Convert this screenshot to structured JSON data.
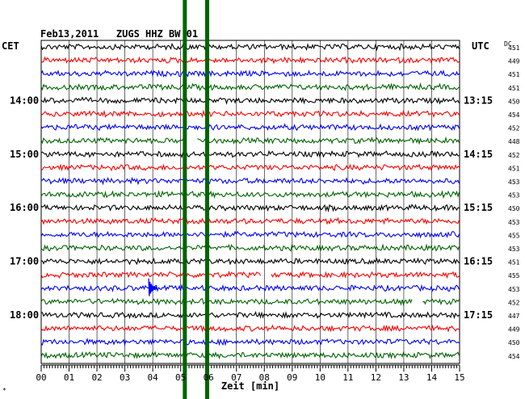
{
  "chart_data": {
    "type": "line",
    "title": "Feb13,2011   ZUGS HHZ BW 01",
    "left_axis_label": "CET",
    "right_axis_label": "UTC",
    "dc_label": "DC",
    "xlabel": "Zeit [min]",
    "x_ticks": [
      "00",
      "01",
      "02",
      "03",
      "04",
      "05",
      "06",
      "07",
      "08",
      "09",
      "10",
      "11",
      "12",
      "13",
      "14",
      "15"
    ],
    "xlim": [
      0,
      15
    ],
    "trace_colors": [
      "#000000",
      "#ff0000",
      "#0000ff",
      "#006400"
    ],
    "left_hour_labels": [
      "14:00",
      "15:00",
      "16:00",
      "17:00",
      "18:00"
    ],
    "right_hour_labels": [
      "13:15",
      "14:15",
      "15:15",
      "16:15",
      "17:15"
    ],
    "hour_label_rows": [
      4,
      8,
      12,
      16,
      20
    ],
    "dc_offsets": [
      451,
      449,
      451,
      451,
      450,
      454,
      452,
      448,
      452,
      451,
      453,
      453,
      450,
      453,
      455,
      453,
      451,
      455,
      453,
      452,
      447,
      449,
      450,
      454
    ],
    "marker_color": "#006400",
    "vertical_markers_min": [
      5.15,
      5.95
    ],
    "events": [
      {
        "row": 18,
        "minute": 3.85,
        "type": "local-event"
      },
      {
        "row": 17,
        "minute": 7.9,
        "type": "gap"
      },
      {
        "row": 19,
        "minute": 13.3,
        "type": "gap"
      },
      {
        "row": 7,
        "minute": 5.25,
        "type": "gap"
      }
    ],
    "footnote": "*"
  }
}
